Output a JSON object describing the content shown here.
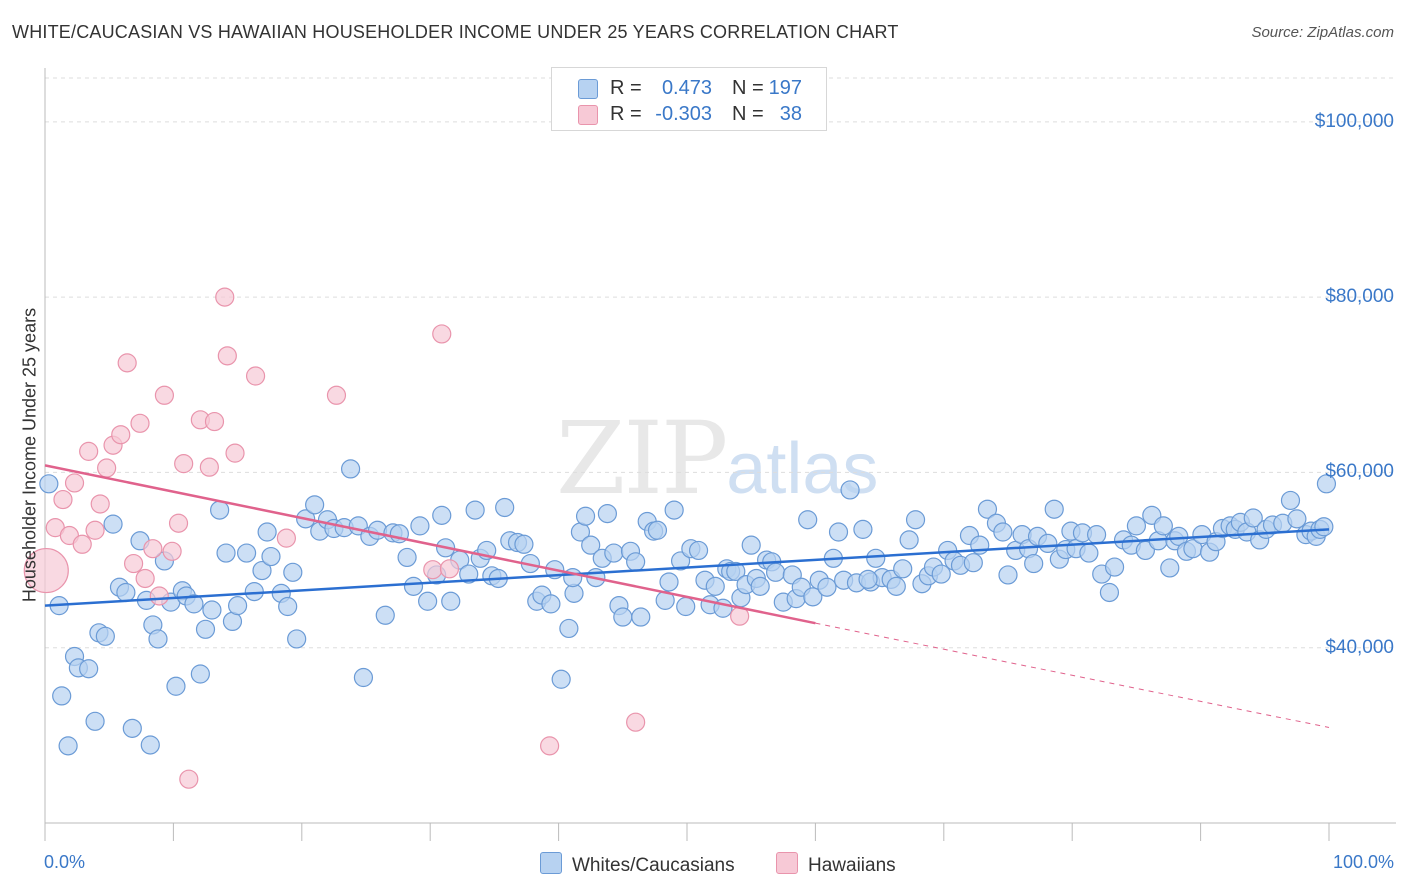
{
  "title": "WHITE/CAUCASIAN VS HAWAIIAN HOUSEHOLDER INCOME UNDER 25 YEARS CORRELATION CHART",
  "source": "Source: ZipAtlas.com",
  "watermark": {
    "zip": "ZIP",
    "atlas": "atlas"
  },
  "stats": [
    {
      "r_label": "R =",
      "r": "0.473",
      "n_label": "N =",
      "n": "197"
    },
    {
      "r_label": "R =",
      "r": "-0.303",
      "n_label": "N =",
      "n": "38"
    }
  ],
  "legend": [
    {
      "label": "Whites/Caucasians"
    },
    {
      "label": "Hawaiians"
    }
  ],
  "colors": {
    "blue_fill": "#b7d2f1",
    "blue_stroke": "#6b9bd6",
    "blue_line": "#2b6fd1",
    "pink_fill": "#f7c9d6",
    "pink_stroke": "#e994ac",
    "pink_line": "#e0628c",
    "tick_text": "#3a78c8",
    "grid": "#dddddd"
  },
  "chart_data": {
    "type": "scatter",
    "title": "WHITE/CAUCASIAN VS HAWAIIAN HOUSEHOLDER INCOME UNDER 25 YEARS CORRELATION CHART",
    "xlabel": "",
    "ylabel": "Householder Income Under 25 years",
    "xlim": [
      0,
      100
    ],
    "ylim": [
      20000,
      105000
    ],
    "x_tick_labels": [
      "0.0%",
      "100.0%"
    ],
    "y_ticks": [
      40000,
      60000,
      80000,
      100000
    ],
    "y_tick_labels": [
      "$40,000",
      "$60,000",
      "$80,000",
      "$100,000"
    ],
    "grid": true,
    "series": [
      {
        "name": "Whites/Caucasians",
        "trend": {
          "x": [
            0,
            100
          ],
          "y": [
            44800,
            53500
          ]
        },
        "points": [
          [
            0.3,
            58700
          ],
          [
            1.1,
            44800
          ],
          [
            1.3,
            34500
          ],
          [
            1.8,
            28800
          ],
          [
            2.3,
            39000
          ],
          [
            2.6,
            37700
          ],
          [
            3.4,
            37600
          ],
          [
            3.9,
            31600
          ],
          [
            4.2,
            41700
          ],
          [
            4.7,
            41300
          ],
          [
            5.3,
            54100
          ],
          [
            5.8,
            46900
          ],
          [
            6.3,
            46300
          ],
          [
            6.8,
            30800
          ],
          [
            7.4,
            52200
          ],
          [
            7.9,
            45400
          ],
          [
            8.2,
            28900
          ],
          [
            8.4,
            42600
          ],
          [
            8.8,
            41000
          ],
          [
            9.3,
            49900
          ],
          [
            9.8,
            45200
          ],
          [
            10.2,
            35600
          ],
          [
            10.7,
            46500
          ],
          [
            11.0,
            45900
          ],
          [
            11.6,
            45000
          ],
          [
            12.1,
            37000
          ],
          [
            12.5,
            42100
          ],
          [
            13.0,
            44300
          ],
          [
            13.6,
            55700
          ],
          [
            14.1,
            50800
          ],
          [
            14.6,
            43000
          ],
          [
            15.0,
            44800
          ],
          [
            15.7,
            50800
          ],
          [
            16.3,
            46400
          ],
          [
            16.9,
            48800
          ],
          [
            17.3,
            53200
          ],
          [
            17.6,
            50400
          ],
          [
            18.4,
            46200
          ],
          [
            18.9,
            44700
          ],
          [
            19.3,
            48600
          ],
          [
            19.6,
            41000
          ],
          [
            20.3,
            54700
          ],
          [
            21.0,
            56300
          ],
          [
            21.4,
            53300
          ],
          [
            22.0,
            54600
          ],
          [
            22.5,
            53600
          ],
          [
            23.3,
            53700
          ],
          [
            23.8,
            60400
          ],
          [
            24.4,
            53900
          ],
          [
            24.8,
            36600
          ],
          [
            25.3,
            52700
          ],
          [
            25.9,
            53400
          ],
          [
            26.5,
            43700
          ],
          [
            27.1,
            53100
          ],
          [
            27.6,
            53000
          ],
          [
            28.2,
            50300
          ],
          [
            28.7,
            47000
          ],
          [
            29.2,
            53900
          ],
          [
            29.8,
            45300
          ],
          [
            30.5,
            48300
          ],
          [
            30.9,
            55100
          ],
          [
            31.2,
            51400
          ],
          [
            31.6,
            45300
          ],
          [
            32.3,
            50000
          ],
          [
            33.0,
            48400
          ],
          [
            33.5,
            55700
          ],
          [
            33.9,
            50200
          ],
          [
            34.4,
            51100
          ],
          [
            34.8,
            48200
          ],
          [
            35.3,
            47900
          ],
          [
            35.8,
            56000
          ],
          [
            36.2,
            52200
          ],
          [
            36.8,
            52000
          ],
          [
            37.3,
            51800
          ],
          [
            37.8,
            49600
          ],
          [
            38.3,
            45300
          ],
          [
            38.7,
            46000
          ],
          [
            39.4,
            45000
          ],
          [
            39.7,
            48900
          ],
          [
            40.2,
            36400
          ],
          [
            40.8,
            42200
          ],
          [
            41.2,
            46200
          ],
          [
            41.7,
            53200
          ],
          [
            42.1,
            55000
          ],
          [
            42.5,
            51700
          ],
          [
            42.9,
            48000
          ],
          [
            43.4,
            50200
          ],
          [
            43.8,
            55300
          ],
          [
            44.3,
            50800
          ],
          [
            44.7,
            44800
          ],
          [
            45.0,
            43500
          ],
          [
            45.6,
            51000
          ],
          [
            46.0,
            49800
          ],
          [
            46.4,
            43500
          ],
          [
            46.9,
            54400
          ],
          [
            47.4,
            53300
          ],
          [
            47.7,
            53400
          ],
          [
            48.3,
            45400
          ],
          [
            48.6,
            47500
          ],
          [
            49.0,
            55700
          ],
          [
            49.5,
            49900
          ],
          [
            49.9,
            44700
          ],
          [
            50.3,
            51300
          ],
          [
            50.9,
            51100
          ],
          [
            51.4,
            47700
          ],
          [
            51.8,
            44900
          ],
          [
            52.2,
            47000
          ],
          [
            52.8,
            44500
          ],
          [
            53.1,
            49000
          ],
          [
            53.4,
            48700
          ],
          [
            53.8,
            48700
          ],
          [
            54.2,
            45700
          ],
          [
            54.6,
            47200
          ],
          [
            55.0,
            51700
          ],
          [
            55.4,
            47900
          ],
          [
            55.7,
            47000
          ],
          [
            56.2,
            50000
          ],
          [
            56.6,
            49800
          ],
          [
            56.9,
            48600
          ],
          [
            57.5,
            45200
          ],
          [
            58.2,
            48300
          ],
          [
            58.5,
            45600
          ],
          [
            58.9,
            46900
          ],
          [
            59.4,
            54600
          ],
          [
            59.8,
            45800
          ],
          [
            60.3,
            47700
          ],
          [
            60.9,
            46900
          ],
          [
            61.4,
            50200
          ],
          [
            61.8,
            53200
          ],
          [
            62.2,
            47700
          ],
          [
            62.7,
            58000
          ],
          [
            63.2,
            47400
          ],
          [
            63.7,
            53500
          ],
          [
            64.3,
            47500
          ],
          [
            64.7,
            50200
          ],
          [
            65.2,
            48000
          ],
          [
            65.9,
            47800
          ],
          [
            66.3,
            47000
          ],
          [
            66.8,
            49000
          ],
          [
            67.3,
            52300
          ],
          [
            67.8,
            54600
          ],
          [
            68.3,
            47300
          ],
          [
            68.8,
            48200
          ],
          [
            69.2,
            49200
          ],
          [
            69.8,
            48400
          ],
          [
            70.3,
            51100
          ],
          [
            70.8,
            49900
          ],
          [
            71.3,
            49400
          ],
          [
            72.0,
            52800
          ],
          [
            72.3,
            49700
          ],
          [
            72.8,
            51700
          ],
          [
            73.4,
            55800
          ],
          [
            74.1,
            54200
          ],
          [
            74.6,
            53200
          ],
          [
            75.0,
            48300
          ],
          [
            75.6,
            51100
          ],
          [
            76.1,
            52900
          ],
          [
            76.6,
            51300
          ],
          [
            77.0,
            49600
          ],
          [
            77.3,
            52700
          ],
          [
            78.1,
            51900
          ],
          [
            78.6,
            55800
          ],
          [
            79.0,
            50100
          ],
          [
            79.5,
            51200
          ],
          [
            79.9,
            53300
          ],
          [
            80.3,
            51300
          ],
          [
            80.8,
            53100
          ],
          [
            81.3,
            50800
          ],
          [
            81.9,
            52900
          ],
          [
            82.3,
            48400
          ],
          [
            82.9,
            46300
          ],
          [
            83.3,
            49200
          ],
          [
            84.0,
            52300
          ],
          [
            84.6,
            51700
          ],
          [
            85.0,
            53900
          ],
          [
            85.7,
            51100
          ],
          [
            86.2,
            55100
          ],
          [
            86.7,
            52200
          ],
          [
            87.1,
            53900
          ],
          [
            87.6,
            49100
          ],
          [
            88.0,
            52200
          ],
          [
            88.3,
            52700
          ],
          [
            88.9,
            51000
          ],
          [
            89.4,
            51300
          ],
          [
            90.1,
            52900
          ],
          [
            90.7,
            50900
          ],
          [
            91.2,
            52100
          ],
          [
            91.7,
            53600
          ],
          [
            92.3,
            53900
          ],
          [
            92.7,
            53500
          ],
          [
            93.1,
            54300
          ],
          [
            93.6,
            53200
          ],
          [
            94.1,
            54800
          ],
          [
            94.6,
            52300
          ],
          [
            95.1,
            53500
          ],
          [
            95.6,
            54000
          ],
          [
            96.4,
            54200
          ],
          [
            97.0,
            56800
          ],
          [
            97.5,
            54700
          ],
          [
            98.2,
            52900
          ],
          [
            98.6,
            53300
          ],
          [
            99.0,
            52700
          ],
          [
            99.3,
            53500
          ],
          [
            99.6,
            53800
          ],
          [
            99.8,
            58700
          ],
          [
            64.1,
            47800
          ],
          [
            41.1,
            48000
          ]
        ]
      },
      {
        "name": "Hawaiians",
        "trend": {
          "x": [
            0,
            60
          ],
          "y": [
            60800,
            42800
          ]
        },
        "trend_dashed": {
          "x": [
            60,
            100
          ],
          "y": [
            42800,
            30900
          ]
        },
        "points": [
          [
            0.1,
            48800
          ],
          [
            0.8,
            53700
          ],
          [
            1.4,
            56900
          ],
          [
            1.9,
            52800
          ],
          [
            2.3,
            58800
          ],
          [
            2.9,
            51800
          ],
          [
            3.4,
            62400
          ],
          [
            3.9,
            53400
          ],
          [
            4.3,
            56400
          ],
          [
            4.8,
            60500
          ],
          [
            5.3,
            63100
          ],
          [
            5.9,
            64300
          ],
          [
            6.4,
            72500
          ],
          [
            6.9,
            49600
          ],
          [
            7.4,
            65600
          ],
          [
            7.8,
            47900
          ],
          [
            8.4,
            51300
          ],
          [
            8.9,
            45900
          ],
          [
            9.3,
            68800
          ],
          [
            9.9,
            51000
          ],
          [
            10.4,
            54200
          ],
          [
            10.8,
            61000
          ],
          [
            11.2,
            25000
          ],
          [
            12.1,
            66000
          ],
          [
            12.8,
            60600
          ],
          [
            13.2,
            65800
          ],
          [
            14.0,
            80000
          ],
          [
            14.2,
            73300
          ],
          [
            14.8,
            62200
          ],
          [
            16.4,
            71000
          ],
          [
            18.8,
            52500
          ],
          [
            22.7,
            68800
          ],
          [
            30.2,
            48900
          ],
          [
            30.9,
            75800
          ],
          [
            31.5,
            49000
          ],
          [
            39.3,
            28800
          ],
          [
            46.0,
            31500
          ],
          [
            54.1,
            43600
          ]
        ]
      }
    ]
  }
}
